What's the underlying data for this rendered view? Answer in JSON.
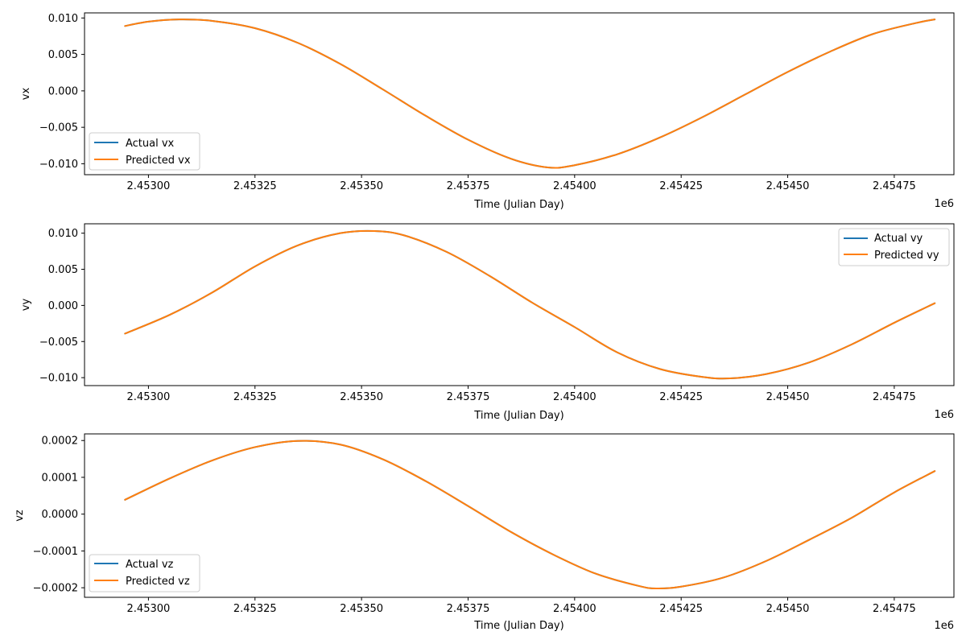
{
  "figure": {
    "background": "#ffffff"
  },
  "colors": {
    "actual": "#1f77b4",
    "predicted": "#ff7f0e"
  },
  "chart_data": [
    {
      "type": "line",
      "ylabel": "vx",
      "xlabel": "Time (Julian Day)",
      "x_offset_label": "1e6",
      "xlim": [
        2452850,
        2454890
      ],
      "ylim": [
        -0.0115,
        0.0107
      ],
      "x_ticks": [
        2453000,
        2453250,
        2453500,
        2453750,
        2454000,
        2454250,
        2454500,
        2454750
      ],
      "x_tick_labels": [
        "2.45300",
        "2.45325",
        "2.45350",
        "2.45375",
        "2.45400",
        "2.45425",
        "2.45450",
        "2.45475"
      ],
      "y_ticks": [
        -0.01,
        -0.005,
        0.0,
        0.005,
        0.01
      ],
      "y_tick_labels": [
        "−0.010",
        "−0.005",
        "0.000",
        "0.005",
        "0.010"
      ],
      "legend_location": "lower-left",
      "series": [
        {
          "name": "Actual vx",
          "role": "actual",
          "x": [
            2452945,
            2453000,
            2453072,
            2453150,
            2453250,
            2453350,
            2453450,
            2453550,
            2453650,
            2453750,
            2453850,
            2453937,
            2454000,
            2454100,
            2454200,
            2454300,
            2454400,
            2454500,
            2454600,
            2454700,
            2454800,
            2454845
          ],
          "y": [
            0.0089,
            0.0095,
            0.0098,
            0.0096,
            0.0086,
            0.0066,
            0.0037,
            0.0002,
            -0.0034,
            -0.0067,
            -0.0093,
            -0.0105,
            -0.0102,
            -0.0087,
            -0.0064,
            -0.0036,
            -0.0005,
            0.0026,
            0.0054,
            0.0078,
            0.0093,
            0.0098
          ]
        },
        {
          "name": "Predicted vx",
          "role": "predicted",
          "x": [
            2452945,
            2453000,
            2453072,
            2453150,
            2453250,
            2453350,
            2453450,
            2453550,
            2453650,
            2453750,
            2453850,
            2453937,
            2454000,
            2454100,
            2454200,
            2454300,
            2454400,
            2454500,
            2454600,
            2454700,
            2454800,
            2454845
          ],
          "y": [
            0.0089,
            0.0095,
            0.0098,
            0.0096,
            0.0086,
            0.0066,
            0.0037,
            0.0002,
            -0.0034,
            -0.0067,
            -0.0093,
            -0.0105,
            -0.0102,
            -0.0087,
            -0.0064,
            -0.0036,
            -0.0005,
            0.0026,
            0.0054,
            0.0078,
            0.0093,
            0.0098
          ]
        }
      ]
    },
    {
      "type": "line",
      "ylabel": "vy",
      "xlabel": "Time (Julian Day)",
      "x_offset_label": "1e6",
      "xlim": [
        2452850,
        2454890
      ],
      "ylim": [
        -0.0111,
        0.0113
      ],
      "x_ticks": [
        2453000,
        2453250,
        2453500,
        2453750,
        2454000,
        2454250,
        2454500,
        2454750
      ],
      "x_tick_labels": [
        "2.45300",
        "2.45325",
        "2.45350",
        "2.45375",
        "2.45400",
        "2.45425",
        "2.45450",
        "2.45475"
      ],
      "y_ticks": [
        -0.01,
        -0.005,
        0.0,
        0.005,
        0.01
      ],
      "y_tick_labels": [
        "−0.010",
        "−0.005",
        "0.000",
        "0.005",
        "0.010"
      ],
      "legend_location": "upper-right",
      "series": [
        {
          "name": "Actual vy",
          "role": "actual",
          "x": [
            2452945,
            2453050,
            2453150,
            2453250,
            2453350,
            2453450,
            2453530,
            2453600,
            2453700,
            2453800,
            2453900,
            2454000,
            2454100,
            2454200,
            2454300,
            2454365,
            2454450,
            2454550,
            2454650,
            2454750,
            2454845
          ],
          "y": [
            -0.0039,
            -0.0013,
            0.0018,
            0.0054,
            0.0083,
            0.01,
            0.0103,
            0.0097,
            0.0074,
            0.0041,
            0.0004,
            -0.003,
            -0.0065,
            -0.0088,
            -0.0099,
            -0.0101,
            -0.0095,
            -0.0079,
            -0.0054,
            -0.0024,
            0.0003
          ]
        },
        {
          "name": "Predicted vy",
          "role": "predicted",
          "x": [
            2452945,
            2453050,
            2453150,
            2453250,
            2453350,
            2453450,
            2453530,
            2453600,
            2453700,
            2453800,
            2453900,
            2454000,
            2454100,
            2454200,
            2454300,
            2454365,
            2454450,
            2454550,
            2454650,
            2454750,
            2454845
          ],
          "y": [
            -0.0039,
            -0.0013,
            0.0018,
            0.0054,
            0.0083,
            0.01,
            0.0103,
            0.0097,
            0.0074,
            0.0041,
            0.0004,
            -0.003,
            -0.0065,
            -0.0088,
            -0.0099,
            -0.0101,
            -0.0095,
            -0.0079,
            -0.0054,
            -0.0024,
            0.0003
          ]
        }
      ]
    },
    {
      "type": "line",
      "ylabel": "vz",
      "xlabel": "Time (Julian Day)",
      "x_offset_label": "1e6",
      "xlim": [
        2452850,
        2454890
      ],
      "ylim": [
        -0.000226,
        0.000218
      ],
      "x_ticks": [
        2453000,
        2453250,
        2453500,
        2453750,
        2454000,
        2454250,
        2454500,
        2454750
      ],
      "x_tick_labels": [
        "2.45300",
        "2.45325",
        "2.45350",
        "2.45375",
        "2.45400",
        "2.45425",
        "2.45450",
        "2.45475"
      ],
      "y_ticks": [
        -0.0002,
        -0.0001,
        0.0,
        0.0001,
        0.0002
      ],
      "y_tick_labels": [
        "−0.0002",
        "−0.0001",
        "0.0000",
        "0.0001",
        "0.0002"
      ],
      "legend_location": "lower-left",
      "series": [
        {
          "name": "Actual vz",
          "role": "actual",
          "x": [
            2452945,
            2453050,
            2453150,
            2453250,
            2453350,
            2453450,
            2453550,
            2453650,
            2453750,
            2453850,
            2453950,
            2454050,
            2454150,
            2454192,
            2454250,
            2454350,
            2454450,
            2454550,
            2454650,
            2454750,
            2454845
          ],
          "y": [
            3.9e-05,
            9.7e-05,
            0.000146,
            0.000182,
            0.000199,
            0.000189,
            0.000149,
            9e-05,
            2.2e-05,
            -4.8e-05,
            -0.00011,
            -0.000162,
            -0.000195,
            -0.000202,
            -0.000197,
            -0.000172,
            -0.000127,
            -7e-05,
            -1e-05,
            5.9e-05,
            0.000117
          ]
        },
        {
          "name": "Predicted vz",
          "role": "predicted",
          "x": [
            2452945,
            2453050,
            2453150,
            2453250,
            2453350,
            2453450,
            2453550,
            2453650,
            2453750,
            2453850,
            2453950,
            2454050,
            2454150,
            2454192,
            2454250,
            2454350,
            2454450,
            2454550,
            2454650,
            2454750,
            2454845
          ],
          "y": [
            3.9e-05,
            9.7e-05,
            0.000146,
            0.000182,
            0.000199,
            0.000189,
            0.000149,
            9e-05,
            2.2e-05,
            -4.8e-05,
            -0.00011,
            -0.000162,
            -0.000195,
            -0.000202,
            -0.000197,
            -0.000172,
            -0.000127,
            -7e-05,
            -1e-05,
            5.9e-05,
            0.000117
          ]
        }
      ]
    }
  ]
}
